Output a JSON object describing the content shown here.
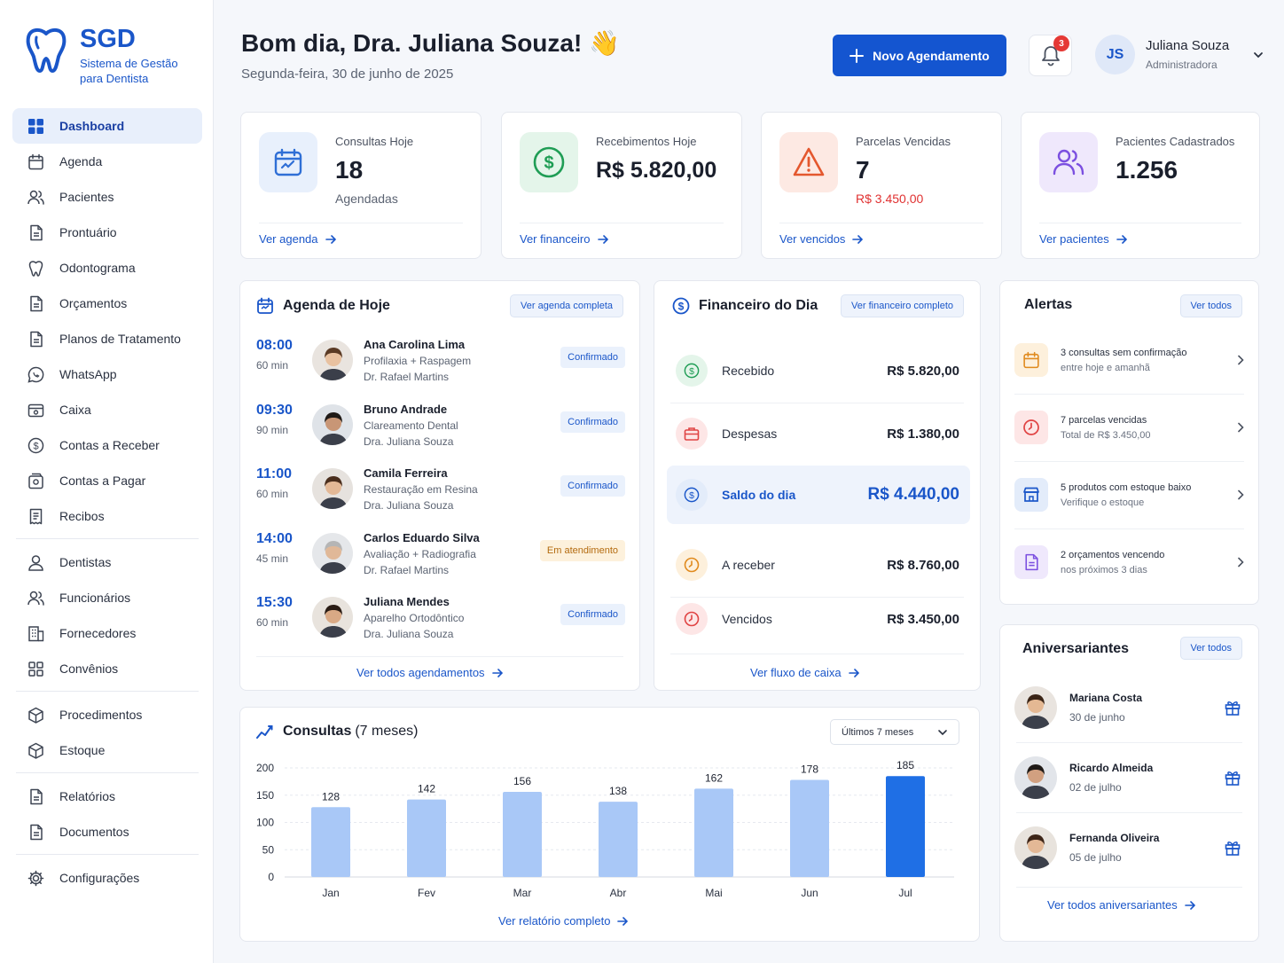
{
  "brand": {
    "name": "SGD",
    "subtitle_line1": "Sistema de Gestão",
    "subtitle_line2": "para Dentista"
  },
  "nav": [
    {
      "label": "Dashboard",
      "icon": "grid-icon",
      "active": true
    },
    {
      "label": "Agenda",
      "icon": "calendar-icon"
    },
    {
      "label": "Pacientes",
      "icon": "users-icon"
    },
    {
      "label": "Prontuário",
      "icon": "file-icon"
    },
    {
      "label": "Odontograma",
      "icon": "tooth-icon"
    },
    {
      "label": "Orçamentos",
      "icon": "file-icon"
    },
    {
      "label": "Planos de Tratamento",
      "icon": "file-icon"
    },
    {
      "label": "WhatsApp",
      "icon": "whatsapp-icon"
    },
    {
      "label": "Caixa",
      "icon": "cash-icon"
    },
    {
      "label": "Contas a Receber",
      "icon": "dollar-icon"
    },
    {
      "label": "Contas a Pagar",
      "icon": "wallet-icon"
    },
    {
      "label": "Recibos",
      "icon": "receipt-icon"
    },
    {
      "label": "Dentistas",
      "icon": "user-icon"
    },
    {
      "label": "Funcionários",
      "icon": "users-icon"
    },
    {
      "label": "Fornecedores",
      "icon": "building-icon"
    },
    {
      "label": "Convênios",
      "icon": "handshake-icon"
    },
    {
      "label": "Procedimentos",
      "icon": "box-icon"
    },
    {
      "label": "Estoque",
      "icon": "box-icon"
    },
    {
      "label": "Relatórios",
      "icon": "file-icon"
    },
    {
      "label": "Documentos",
      "icon": "file-icon"
    },
    {
      "label": "Configurações",
      "icon": "gear-icon"
    }
  ],
  "header": {
    "greeting": "Bom dia, Dra. Juliana Souza! 👋",
    "date": "Segunda-feira, 30 de junho de 2025",
    "new_button": "Novo Agendamento",
    "notifications": "3",
    "user_initials": "JS",
    "user_name": "Juliana Souza",
    "user_role": "Administradora"
  },
  "stats": [
    {
      "label": "Consultas Hoje",
      "value": "18",
      "sub": "Agendadas",
      "link": "Ver agenda",
      "accent": "#2f6fd6"
    },
    {
      "label": "Recebimentos Hoje",
      "value": "R$ 5.820,00",
      "sub": "",
      "link": "Ver financeiro",
      "accent": "#1f9d55"
    },
    {
      "label": "Parcelas Vencidas",
      "value": "7",
      "sub": "R$ 3.450,00",
      "link": "Ver vencidos",
      "accent": "#e4572e"
    },
    {
      "label": "Pacientes Cadastrados",
      "value": "1.256",
      "sub": "",
      "link": "Ver pacientes",
      "accent": "#7b4fe0"
    }
  ],
  "agenda": {
    "title": "Agenda de Hoje",
    "button": "Ver agenda completa",
    "footer_link": "Ver todos agendamentos",
    "items": [
      {
        "time": "08:00",
        "duration": "60 min",
        "name": "Ana Carolina Lima",
        "procedure": "Profilaxia + Raspagem",
        "doctor": "Dr. Rafael Martins",
        "status": "Confirmado"
      },
      {
        "time": "09:30",
        "duration": "90 min",
        "name": "Bruno Andrade",
        "procedure": "Clareamento Dental",
        "doctor": "Dra. Juliana Souza",
        "status": "Confirmado"
      },
      {
        "time": "11:00",
        "duration": "60 min",
        "name": "Camila Ferreira",
        "procedure": "Restauração em Resina",
        "doctor": "Dra. Juliana Souza",
        "status": "Confirmado"
      },
      {
        "time": "14:00",
        "duration": "45 min",
        "name": "Carlos Eduardo Silva",
        "procedure": "Avaliação + Radiografia",
        "doctor": "Dr. Rafael Martins",
        "status": "Em atendimento"
      },
      {
        "time": "15:30",
        "duration": "60 min",
        "name": "Juliana Mendes",
        "procedure": "Aparelho Ortodôntico",
        "doctor": "Dra. Juliana Souza",
        "status": "Confirmado"
      }
    ]
  },
  "finance": {
    "title": "Financeiro do Dia",
    "button": "Ver financeiro completo",
    "footer_link": "Ver fluxo de caixa",
    "rows": [
      {
        "label": "Recebido",
        "value": "R$ 5.820,00",
        "icon": "dollar-icon",
        "color": "#1f9d55"
      },
      {
        "label": "Despesas",
        "value": "R$ 1.380,00",
        "icon": "briefcase-icon",
        "color": "#e04343"
      },
      {
        "label": "Saldo do dia",
        "value": "R$ 4.440,00",
        "icon": "dollar-icon",
        "color": "#1a56c9"
      },
      {
        "label": "A receber",
        "value": "R$ 8.760,00",
        "icon": "clock-icon",
        "color": "#e08a1e"
      },
      {
        "label": "Vencidos",
        "value": "R$ 3.450,00",
        "icon": "clock-icon",
        "color": "#e04343"
      }
    ]
  },
  "alerts": {
    "title": "Alertas",
    "button": "Ver todos",
    "items": [
      {
        "line1": "3 consultas sem confirmação",
        "line2": "entre hoje e amanhã",
        "icon": "calendar-icon",
        "color": "#e08a1e"
      },
      {
        "line1": "7 parcelas vencidas",
        "line2": "Total de R$ 3.450,00",
        "icon": "clock-icon",
        "color": "#e04343"
      },
      {
        "line1": "5 produtos com estoque baixo",
        "line2": "Verifique o estoque",
        "icon": "store-icon",
        "color": "#1a56c9"
      },
      {
        "line1": "2 orçamentos vencendo",
        "line2": "nos próximos 3 dias",
        "icon": "file-icon",
        "color": "#7b4fe0"
      }
    ]
  },
  "birthdays": {
    "title": "Aniversariantes",
    "button": "Ver todos",
    "footer_link": "Ver todos aniversariantes",
    "items": [
      {
        "name": "Mariana Costa",
        "date": "30 de junho"
      },
      {
        "name": "Ricardo Almeida",
        "date": "02 de julho"
      },
      {
        "name": "Fernanda Oliveira",
        "date": "05 de julho"
      }
    ]
  },
  "consultas_panel": {
    "title": "Consultas",
    "title_suffix": "(7 meses)",
    "select": "Últimos 7 meses",
    "footer_link": "Ver relatório completo"
  },
  "chart_data": {
    "type": "bar",
    "categories": [
      "Jan",
      "Fev",
      "Mar",
      "Abr",
      "Mai",
      "Jun",
      "Jul"
    ],
    "values": [
      128,
      142,
      156,
      138,
      162,
      178,
      185
    ],
    "yticks": [
      0,
      50,
      100,
      150,
      200
    ],
    "ylim": [
      0,
      200
    ],
    "grid": true,
    "colors": {
      "bar": "#a9c8f7",
      "highlight": "#1f6fe5"
    },
    "highlight_index": 6
  }
}
